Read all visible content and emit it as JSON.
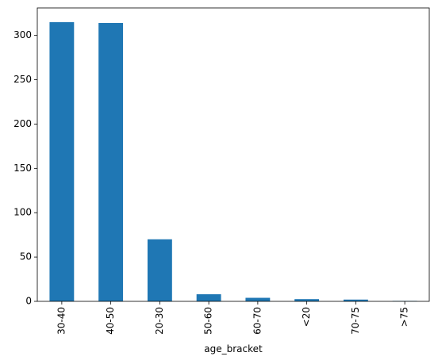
{
  "chart_data": {
    "type": "bar",
    "x_label": "age_bracket",
    "categories": [
      "30-40",
      "40-50",
      "20-30",
      "50-60",
      "60-70",
      "<20",
      "70-75",
      ">75"
    ],
    "values": [
      315,
      314,
      70,
      8,
      4,
      2.5,
      2,
      0.5
    ],
    "color": "#1f77b4",
    "ylim": [
      0,
      331
    ],
    "yticks": [
      0,
      50,
      100,
      150,
      200,
      250,
      300
    ],
    "grid": false
  }
}
